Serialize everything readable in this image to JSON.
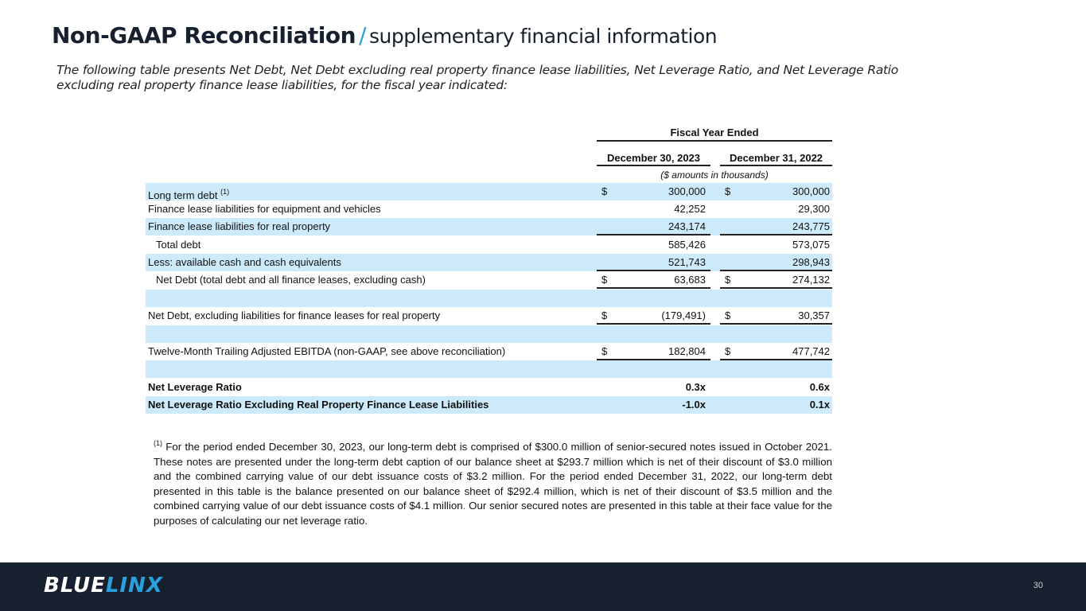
{
  "title": {
    "main": "Non-GAAP Reconciliation",
    "slash": "/",
    "sub": "supplementary financial information"
  },
  "intro": "The following table presents Net Debt, Net Debt excluding real property finance lease liabilities, Net Leverage Ratio, and Net Leverage Ratio excluding real property finance lease liabilities, for the fiscal year indicated:",
  "table": {
    "group_header": "Fiscal Year Ended",
    "col1": "December 30, 2023",
    "col2": "December 31, 2022",
    "units": "($ amounts in thousands)",
    "rows": [
      {
        "label": "Long term debt",
        "sup": "(1)",
        "d1": "$",
        "v1": "300,000",
        "d2": "$",
        "v2": "300,000"
      },
      {
        "label": "Finance lease liabilities for equipment and vehicles",
        "v1": "42,252",
        "v2": "29,300"
      },
      {
        "label": "Finance lease liabilities for real property",
        "v1": "243,174",
        "v2": "243,775"
      },
      {
        "label": "Total debt",
        "v1": "585,426",
        "v2": "573,075"
      },
      {
        "label": "Less: available cash and cash equivalents",
        "v1": "521,743",
        "v2": "298,943"
      },
      {
        "label": "Net Debt  (total debt and all finance leases, excluding cash)",
        "d1": "$",
        "v1": "63,683",
        "d2": "$",
        "v2": "274,132"
      },
      {
        "label": "Net Debt, excluding liabilities for finance leases for real property",
        "d1": "$",
        "v1": "(179,491)",
        "d2": "$",
        "v2": "30,357"
      },
      {
        "label": "Twelve-Month Trailing Adjusted EBITDA (non-GAAP, see above reconciliation)",
        "d1": "$",
        "v1": "182,804",
        "d2": "$",
        "v2": "477,742"
      },
      {
        "label": "Net Leverage Ratio",
        "v1": "0.3x",
        "v2": "0.6x"
      },
      {
        "label": "Net Leverage Ratio Excluding Real Property Finance Lease Liabilities",
        "v1": "-1.0x",
        "v2": "0.1x"
      }
    ]
  },
  "footnote": {
    "marker": "(1)",
    "text": "For the period ended December 30, 2023, our long-term debt is comprised of $300.0 million of senior-secured notes issued in October 2021. These notes are presented under the long-term debt caption of our balance sheet at $293.7 million which is net of their discount of $3.0 million and the combined carrying value of our debt issuance costs of $3.2 million. For the period ended December 31, 2022, our long-term debt presented in this table is the balance presented on our balance sheet of $292.4 million, which is net of their discount of $3.5 million and the combined carrying value of our debt issuance costs of $4.1 million",
    "period": ".",
    "text2": " Our senior secured notes are presented in this table at their face value for the purposes of calculating our net leverage ratio."
  },
  "footer": {
    "logo_a": "BLUE",
    "logo_b": "LINX",
    "page": "30"
  },
  "colors": {
    "navy": "#17202e",
    "accent": "#2aa0dc",
    "row_blue": "#cdeafa"
  }
}
